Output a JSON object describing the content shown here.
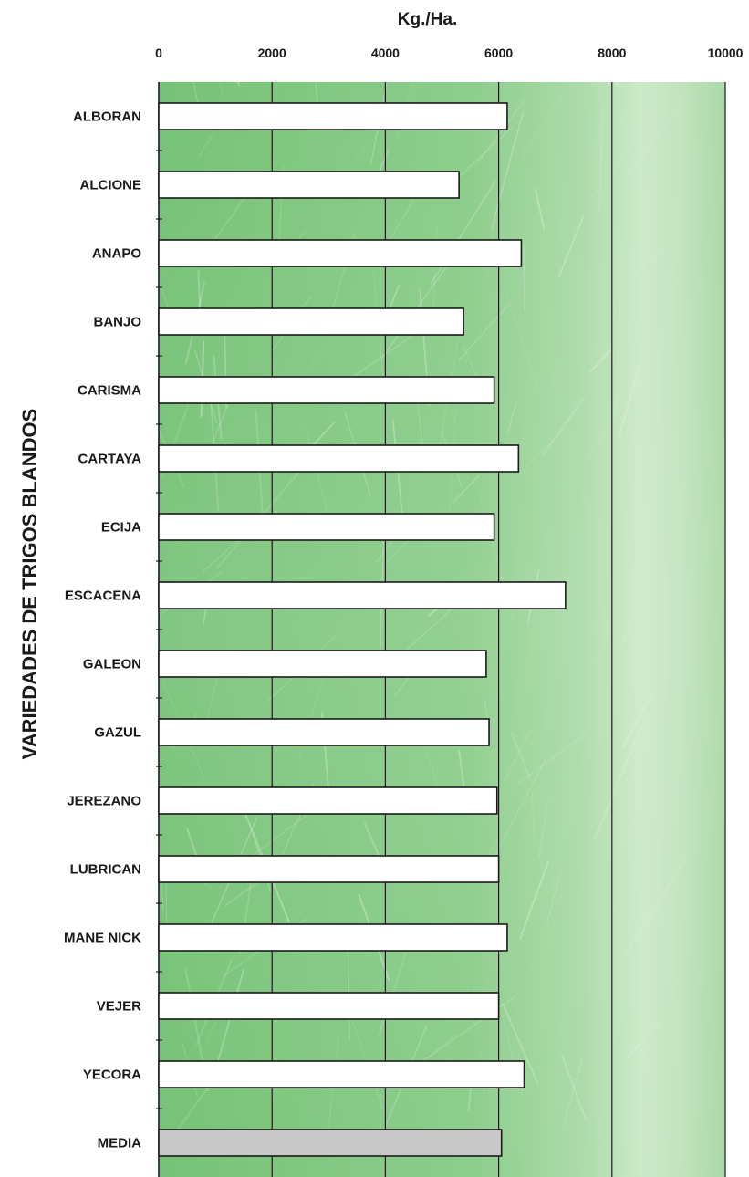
{
  "chart_data": {
    "type": "bar",
    "orientation": "horizontal",
    "title": "Kg./Ha.",
    "ylabel": "VARIEDADES DE TRIGOS BLANDOS",
    "xlim": [
      0,
      10000
    ],
    "xticks": [
      0,
      2000,
      4000,
      6000,
      8000,
      10000
    ],
    "xtick_labels": [
      "0",
      "2000",
      "4000",
      "6000",
      "8000",
      "10000"
    ],
    "categories": [
      "ALBORAN",
      "ALCIONE",
      "ANAPO",
      "BANJO",
      "CARISMA",
      "CARTAYA",
      "ECIJA",
      "ESCACENA",
      "GALEON",
      "GAZUL",
      "JEREZANO",
      "LUBRICAN",
      "MANE NICK",
      "VEJER",
      "YECORA",
      "MEDIA"
    ],
    "values": [
      6150,
      5300,
      6400,
      5380,
      5920,
      6350,
      5920,
      7180,
      5780,
      5830,
      5970,
      6000,
      6150,
      6000,
      6450,
      6050
    ],
    "grid": true,
    "highlight_category": "MEDIA",
    "colors": {
      "bar_fill": "#ffffff",
      "highlight_fill": "#c8c8c8",
      "bar_stroke": "#1a1a1a",
      "plot_background": "#7cc47c",
      "plot_background_light": "#bfe3bc",
      "gridline": "#1a1a1a"
    }
  }
}
